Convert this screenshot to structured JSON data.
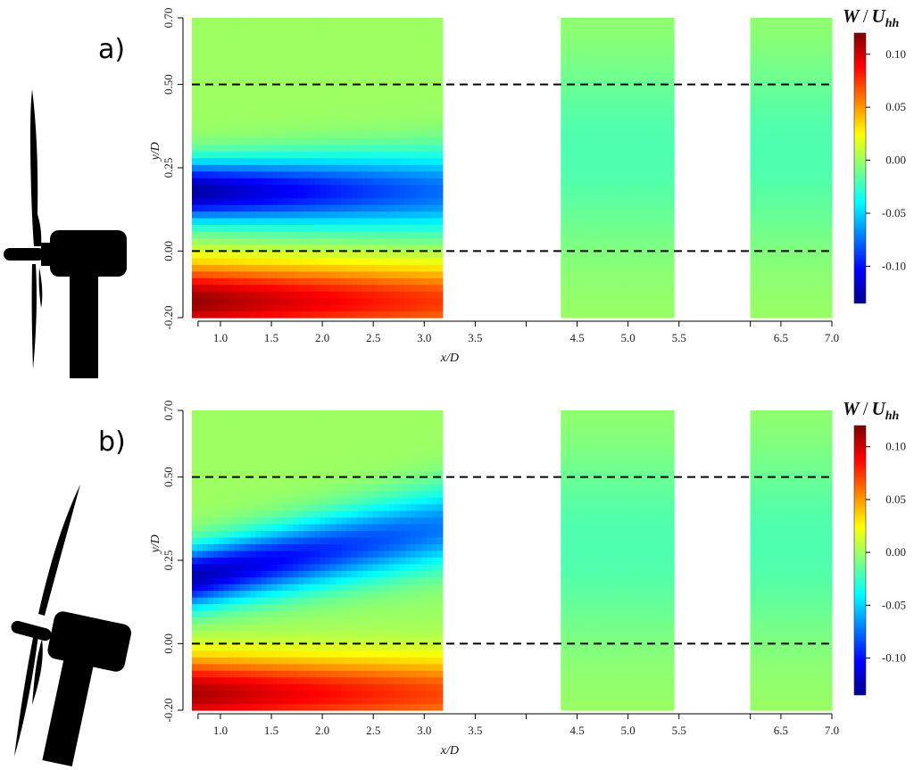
{
  "chart_data": [
    {
      "type": "heatmap",
      "panel_label": "a)",
      "xlabel": "x/D",
      "ylabel": "y/D",
      "x_ticks": [
        "1.0",
        "1.5",
        "2.0",
        "2.5",
        "3.0",
        "3.5",
        "4.5",
        "5.0",
        "5.5",
        "6.5",
        "7.0"
      ],
      "y_ticks": [
        "-0.20",
        "0.00",
        "0.25",
        "0.50",
        "0.70"
      ],
      "xlim": [
        0.72,
        7.0
      ],
      "ylim": [
        -0.2,
        0.7
      ],
      "measurement_windows": [
        [
          0.72,
          3.18
        ],
        [
          4.34,
          5.45
        ],
        [
          6.2,
          7.0
        ]
      ],
      "reference_lines_y": [
        0.0,
        0.5
      ],
      "colorbar": {
        "title_parts": [
          "W",
          "/",
          "U",
          "hh"
        ],
        "ticks": [
          "0.10",
          "0.05",
          "0.00",
          "-0.05",
          "-0.10"
        ],
        "range": [
          -0.135,
          0.12
        ],
        "colormap": [
          "#00008f",
          "#0000ff",
          "#007fff",
          "#00ffff",
          "#7fff7f",
          "#ffff00",
          "#ff7f00",
          "#ff0000",
          "#7f0000"
        ]
      },
      "wake_model": {
        "yaw": 0,
        "neg_peak": -0.13,
        "pos_peak": 0.115,
        "neg_center": 0.18,
        "neg_slope": 0.0,
        "pos_center": -0.15
      }
    },
    {
      "type": "heatmap",
      "panel_label": "b)",
      "xlabel": "x/D",
      "ylabel": "y/D",
      "x_ticks": [
        "1.0",
        "1.5",
        "2.0",
        "2.5",
        "3.0",
        "3.5",
        "4.5",
        "5.0",
        "5.5",
        "6.5",
        "7.0"
      ],
      "y_ticks": [
        "-0.20",
        "0.00",
        "0.25",
        "0.50",
        "0.70"
      ],
      "xlim": [
        0.72,
        7.0
      ],
      "ylim": [
        -0.2,
        0.7
      ],
      "measurement_windows": [
        [
          0.72,
          3.18
        ],
        [
          4.34,
          5.45
        ],
        [
          6.2,
          7.0
        ]
      ],
      "reference_lines_y": [
        0.0,
        0.5
      ],
      "colorbar": {
        "title_parts": [
          "W",
          "/",
          "U",
          "hh"
        ],
        "ticks": [
          "0.10",
          "0.05",
          "0.00",
          "-0.05",
          "-0.10"
        ],
        "range": [
          -0.135,
          0.12
        ],
        "colormap": [
          "#00008f",
          "#0000ff",
          "#007fff",
          "#00ffff",
          "#7fff7f",
          "#ffff00",
          "#ff7f00",
          "#ff0000",
          "#7f0000"
        ]
      },
      "wake_model": {
        "yaw": 1,
        "neg_peak": -0.125,
        "pos_peak": 0.11,
        "neg_center": 0.2,
        "neg_slope": 0.06,
        "pos_center": -0.15
      }
    }
  ]
}
